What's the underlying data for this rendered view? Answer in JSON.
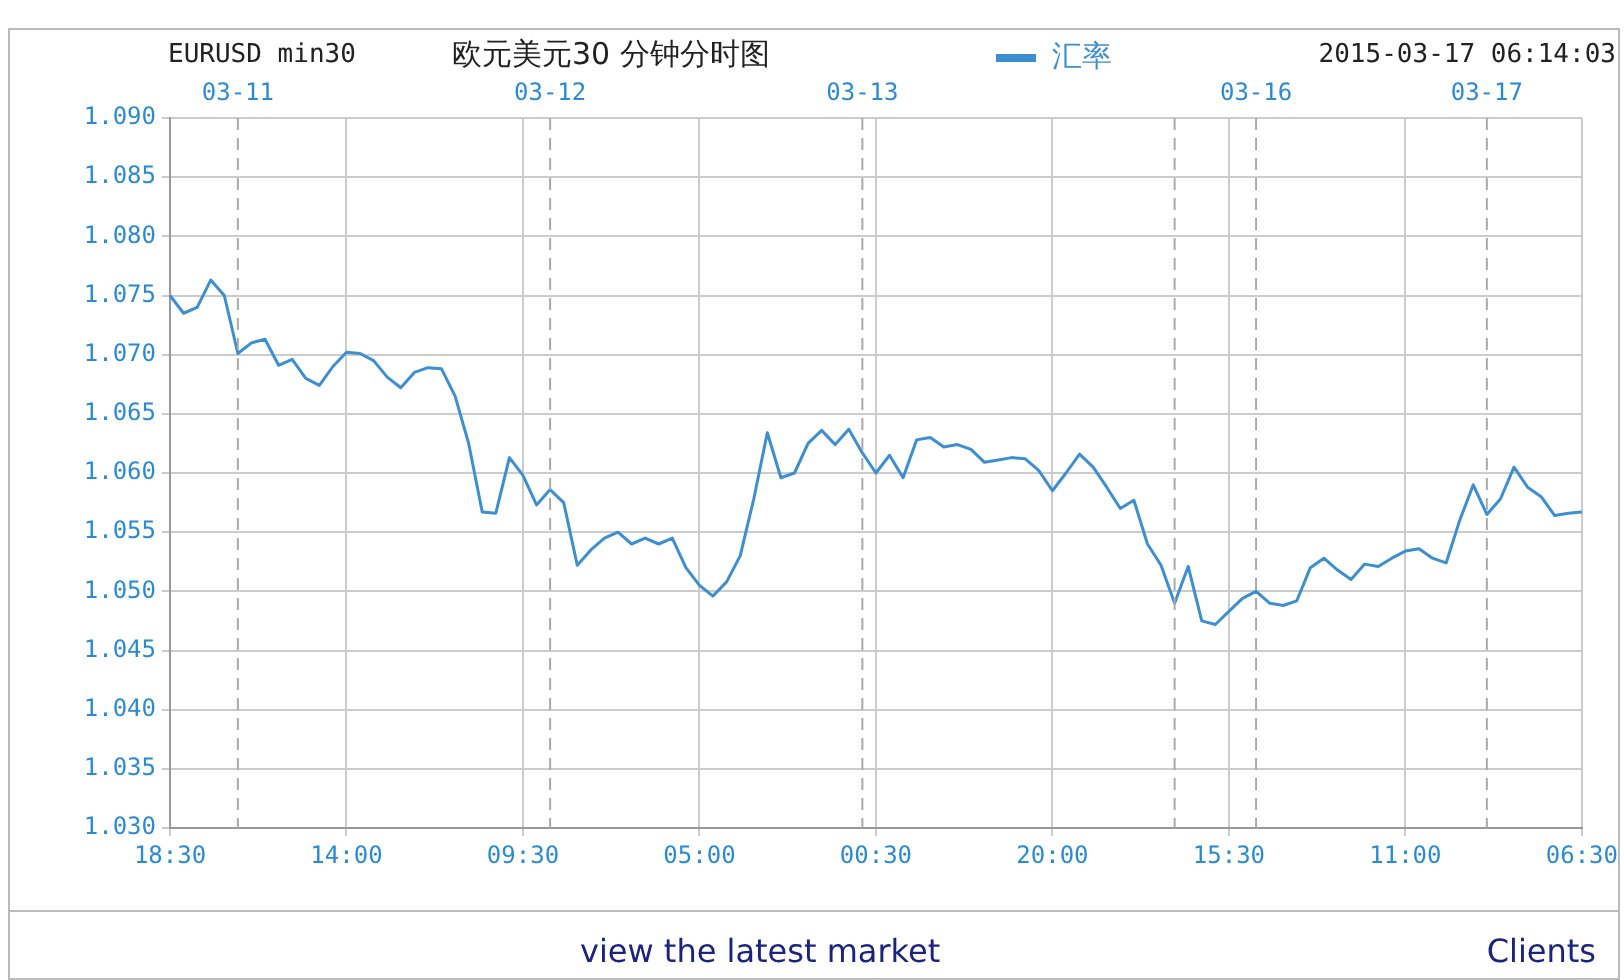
{
  "chart_data": {
    "type": "line",
    "title": "欧元美元30  分钟分时图",
    "subtitle": "EURUSD min30",
    "annotations": [
      "2015-03-17 06:14:03",
      "view the latest market",
      "Clients",
      "03-11",
      "03-12",
      "03-13",
      "03-16",
      "03-17"
    ],
    "categories": [
      "18:30",
      null,
      null,
      null,
      null,
      null,
      null,
      null,
      null,
      null,
      null,
      null,
      null,
      "14:00",
      null,
      null,
      null,
      null,
      null,
      null,
      null,
      null,
      null,
      null,
      null,
      null,
      "09:30",
      null,
      null,
      null,
      null,
      null,
      null,
      null,
      null,
      null,
      null,
      null,
      null,
      "05:00",
      null,
      null,
      null,
      null,
      null,
      null,
      null,
      null,
      null,
      null,
      null,
      null,
      "00:30",
      null,
      null,
      null,
      null,
      null,
      null,
      null,
      null,
      null,
      null,
      null,
      null,
      "20:00",
      null,
      null,
      null,
      null,
      null,
      null,
      null,
      null,
      null,
      null,
      null,
      null,
      "15:30",
      null,
      null,
      null,
      null,
      null,
      null,
      null,
      null,
      null,
      null,
      null,
      null,
      "11:00",
      null,
      null,
      null,
      null,
      null,
      null,
      null,
      null,
      null,
      null,
      null,
      null,
      "06:30"
    ],
    "ylim": [
      1.03,
      1.09
    ],
    "yticks": [
      {
        "value": 1.03,
        "label": "1.030"
      },
      {
        "value": 1.035,
        "label": "1.035"
      },
      {
        "value": 1.04,
        "label": "1.040"
      },
      {
        "value": 1.045,
        "label": "1.045"
      },
      {
        "value": 1.05,
        "label": "1.050"
      },
      {
        "value": 1.055,
        "label": "1.055"
      },
      {
        "value": 1.06,
        "label": "1.060"
      },
      {
        "value": 1.065,
        "label": "1.065"
      },
      {
        "value": 1.07,
        "label": "1.070"
      },
      {
        "value": 1.075,
        "label": "1.075"
      },
      {
        "value": 1.08,
        "label": "1.080"
      },
      {
        "value": 1.085,
        "label": "1.085"
      },
      {
        "value": 1.09,
        "label": "1.090"
      }
    ],
    "grid": true,
    "legend": "top",
    "marker": "none",
    "line_style": "solid",
    "series": [
      {
        "name": "汇率",
        "color": "#3d8fd1",
        "values": [
          1.075,
          1.0735,
          1.074,
          1.0763,
          1.075,
          1.0701,
          1.071,
          1.0713,
          1.0691,
          1.0696,
          1.068,
          1.0674,
          1.069,
          1.0702,
          1.0701,
          1.0695,
          1.0681,
          1.0672,
          1.0685,
          1.0689,
          1.0688,
          1.0665,
          1.0625,
          1.0567,
          1.0566,
          1.0613,
          1.0598,
          1.0573,
          1.0586,
          1.0575,
          1.0522,
          1.0535,
          1.0545,
          1.055,
          1.054,
          1.0545,
          1.054,
          1.0545,
          1.052,
          1.0505,
          1.0496,
          1.0508,
          1.053,
          1.0578,
          1.0634,
          1.0596,
          1.06,
          1.0625,
          1.0636,
          1.0624,
          1.0637,
          1.0617,
          1.06,
          1.0615,
          1.0596,
          1.0628,
          1.063,
          1.0622,
          1.0624,
          1.062,
          1.0609,
          1.0611,
          1.0613,
          1.0612,
          1.0602,
          1.0585,
          1.06,
          1.0616,
          1.0605,
          1.0588,
          1.057,
          1.0577,
          1.054,
          1.0522,
          1.049,
          1.0521,
          1.0475,
          1.0472,
          1.0483,
          1.0494,
          1.05,
          1.049,
          1.0488,
          1.0492,
          1.052,
          1.0528,
          1.0518,
          1.051,
          1.0523,
          1.0521,
          1.0528,
          1.0534,
          1.0536,
          1.0528,
          1.0524,
          1.056,
          1.059,
          1.0565,
          1.0578,
          1.0605,
          1.0588,
          1.058,
          1.0564,
          1.0566,
          1.0567
        ]
      }
    ]
  }
}
